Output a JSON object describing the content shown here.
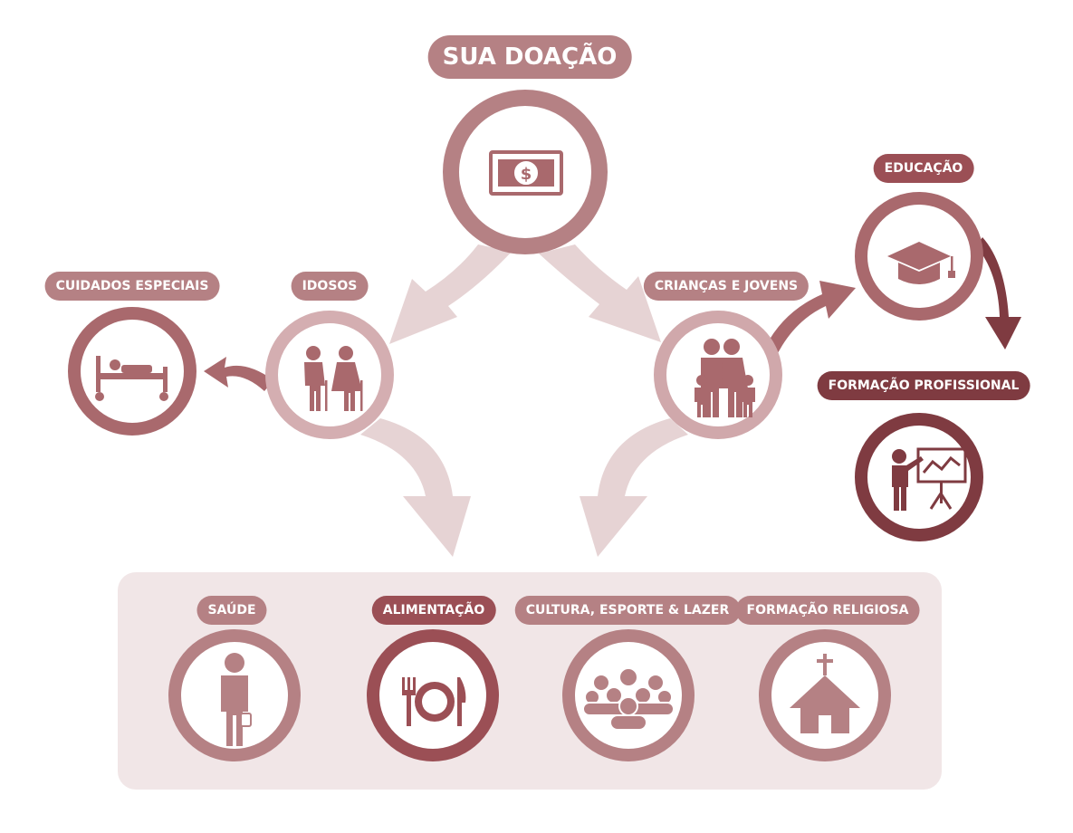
{
  "title": "SUA DOAÇÃO",
  "nodes": {
    "cuidados": {
      "label": "CUIDADOS ESPECIAIS",
      "icon": "hospital-bed-icon"
    },
    "idosos": {
      "label": "IDOSOS",
      "icon": "elderly-couple-icon"
    },
    "criancas": {
      "label": "CRIANÇAS E JOVENS",
      "icon": "family-icon"
    },
    "educacao": {
      "label": "EDUCAÇÃO",
      "icon": "graduation-cap-icon"
    },
    "formacao_prof": {
      "label": "FORMAÇÃO PROFISSIONAL",
      "icon": "presenter-board-icon"
    },
    "doacao": {
      "icon": "banknote-icon"
    }
  },
  "bottom": [
    {
      "label": "SAÚDE",
      "icon": "doctor-icon"
    },
    {
      "label": "ALIMENTAÇÃO",
      "icon": "plate-cutlery-icon"
    },
    {
      "label": "CULTURA, ESPORTE & LAZER",
      "icon": "crowd-icon"
    },
    {
      "label": "FORMAÇÃO RELIGIOSA",
      "icon": "church-icon"
    }
  ],
  "colors": {
    "rose": "#b58184",
    "rose_dark": "#9b4f55",
    "maroon": "#7f3b41",
    "arrow_light": "#e6d3d4",
    "panel": "#f1e6e7"
  }
}
